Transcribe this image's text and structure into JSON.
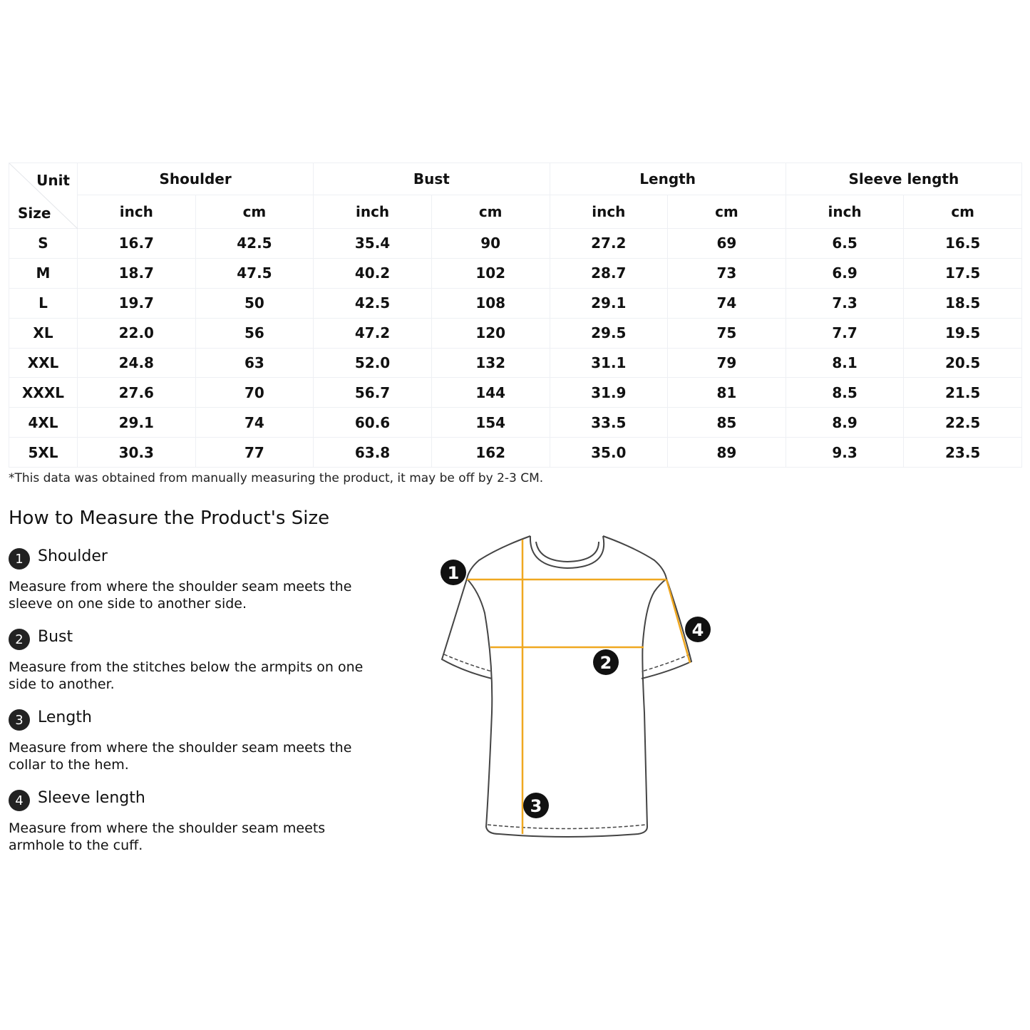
{
  "table": {
    "corner_unit": "Unit",
    "corner_size": "Size",
    "groups": [
      "Shoulder",
      "Bust",
      "Length",
      "Sleeve length"
    ],
    "units": [
      "inch",
      "cm",
      "inch",
      "cm",
      "inch",
      "cm",
      "inch",
      "cm"
    ],
    "rows": [
      {
        "size": "S",
        "values": [
          "16.7",
          "42.5",
          "35.4",
          "90",
          "27.2",
          "69",
          "6.5",
          "16.5"
        ]
      },
      {
        "size": "M",
        "values": [
          "18.7",
          "47.5",
          "40.2",
          "102",
          "28.7",
          "73",
          "6.9",
          "17.5"
        ]
      },
      {
        "size": "L",
        "values": [
          "19.7",
          "50",
          "42.5",
          "108",
          "29.1",
          "74",
          "7.3",
          "18.5"
        ]
      },
      {
        "size": "XL",
        "values": [
          "22.0",
          "56",
          "47.2",
          "120",
          "29.5",
          "75",
          "7.7",
          "19.5"
        ]
      },
      {
        "size": "XXL",
        "values": [
          "24.8",
          "63",
          "52.0",
          "132",
          "31.1",
          "79",
          "8.1",
          "20.5"
        ]
      },
      {
        "size": "XXXL",
        "values": [
          "27.6",
          "70",
          "56.7",
          "144",
          "31.9",
          "81",
          "8.5",
          "21.5"
        ]
      },
      {
        "size": "4XL",
        "values": [
          "29.1",
          "74",
          "60.6",
          "154",
          "33.5",
          "85",
          "8.9",
          "22.5"
        ]
      },
      {
        "size": "5XL",
        "values": [
          "30.3",
          "77",
          "63.8",
          "162",
          "35.0",
          "89",
          "9.3",
          "23.5"
        ]
      }
    ]
  },
  "note": "*This data was obtained from manually measuring the product, it may be off by 2-3 CM.",
  "guide": {
    "title": "How to Measure the Product's Size",
    "items": [
      {
        "num": "1",
        "label": "Shoulder",
        "desc": "Measure from where the shoulder seam meets the sleeve on one side to another side."
      },
      {
        "num": "2",
        "label": "Bust",
        "desc": "Measure from the stitches below the armpits on one side to another."
      },
      {
        "num": "3",
        "label": "Length",
        "desc": "Measure from where the shoulder seam meets the collar to the hem."
      },
      {
        "num": "4",
        "label": "Sleeve length",
        "desc": "Measure from where the shoulder seam meets armhole to the cuff."
      }
    ]
  },
  "colors": {
    "measure_line": "#f0a820",
    "outline": "#444444",
    "marker": "#111111"
  }
}
